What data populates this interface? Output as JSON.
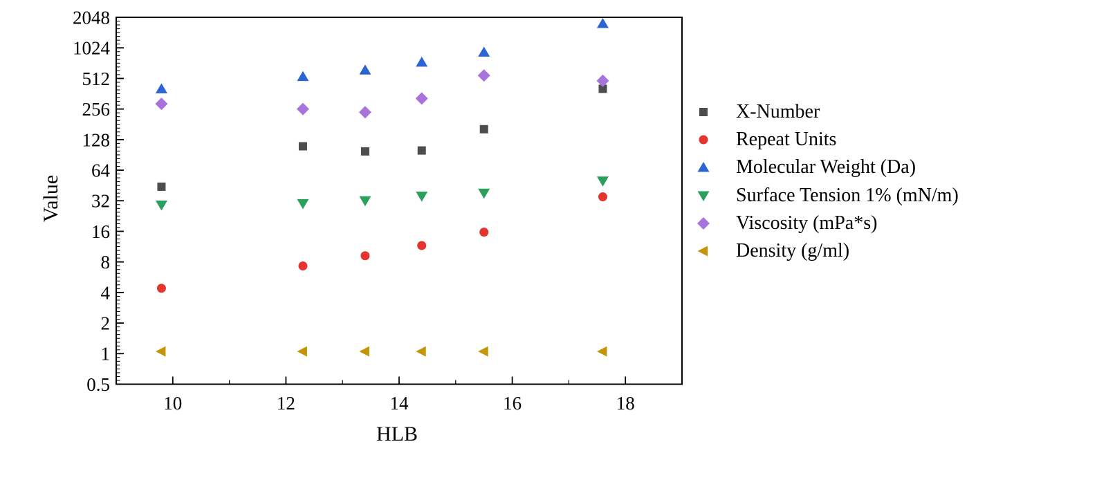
{
  "chart_data": {
    "type": "scatter",
    "title": "",
    "xlabel": "HLB",
    "ylabel": "Value",
    "x_axis": {
      "scale": "linear",
      "range": [
        9,
        19
      ],
      "major_ticks": [
        10,
        12,
        14,
        16,
        18
      ],
      "minor_ticks": [
        9,
        11,
        13,
        15,
        17
      ]
    },
    "y_axis": {
      "scale": "log2",
      "range": [
        0.5,
        2048
      ],
      "major_ticks": [
        2048,
        1024,
        512,
        256,
        128,
        64,
        32,
        16,
        8,
        4,
        2,
        1,
        0.5
      ]
    },
    "x": [
      9.8,
      12.3,
      13.4,
      14.4,
      15.5,
      17.6
    ],
    "series": [
      {
        "name": "X-Number",
        "marker": "square",
        "color": "#4d4d4d",
        "values": [
          44,
          110,
          98,
          100,
          162,
          405
        ]
      },
      {
        "name": "Repeat Units",
        "marker": "circle",
        "color": "#e5342e",
        "values": [
          4.4,
          7.3,
          9.2,
          11.6,
          15.7,
          35
        ]
      },
      {
        "name": "Molecular Weight (Da)",
        "marker": "triangle-up",
        "color": "#2b64d4",
        "values": [
          405,
          535,
          620,
          740,
          930,
          1780
        ]
      },
      {
        "name": "Surface Tension 1% (mN/m)",
        "marker": "triangle-down",
        "color": "#2ba05c",
        "values": [
          29,
          30,
          32,
          35.5,
          38,
          50
        ]
      },
      {
        "name": "Viscosity (mPa*s)",
        "marker": "diamond",
        "color": "#a674dc",
        "values": [
          288,
          256,
          238,
          325,
          548,
          486
        ]
      },
      {
        "name": "Density (g/ml)",
        "marker": "triangle-left",
        "color": "#c5940b",
        "values": [
          1.05,
          1.05,
          1.05,
          1.05,
          1.05,
          1.05
        ]
      }
    ],
    "legend_position": "right-outside",
    "grid": false,
    "frame_color": "#000000",
    "background_color": "#ffffff"
  }
}
